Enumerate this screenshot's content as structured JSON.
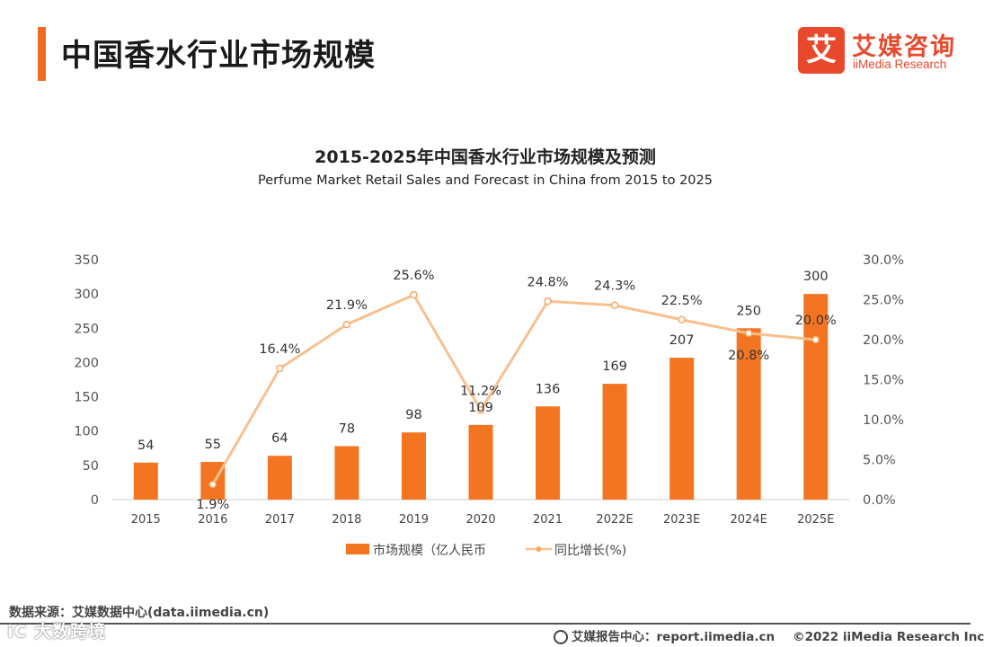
{
  "header": {
    "title": "中国香水行业市场规模"
  },
  "logo": {
    "mark": "艾",
    "cn": "艾媒咨询",
    "en": "iiMedia Research",
    "color": "#e8492d"
  },
  "chart_data": {
    "type": "bar+line",
    "title": "2015-2025年中国香水行业市场规模及预测",
    "subtitle": "Perfume Market Retail Sales and Forecast in China from 2015 to 2025",
    "categories": [
      "2015",
      "2016",
      "2017",
      "2018",
      "2019",
      "2020",
      "2021",
      "2022E",
      "2023E",
      "2024E",
      "2025E"
    ],
    "series": [
      {
        "name": "市场规模（亿人民币",
        "type": "bar",
        "axis": "left",
        "color": "#f47521",
        "values": [
          54,
          55,
          64,
          78,
          98,
          109,
          136,
          169,
          207,
          250,
          300
        ]
      },
      {
        "name": "同比增长(%)",
        "type": "line",
        "axis": "right",
        "color": "#f9c08e",
        "values": [
          null,
          1.9,
          16.4,
          21.9,
          25.6,
          11.2,
          24.8,
          24.3,
          22.5,
          20.8,
          20.0
        ],
        "labels": [
          "",
          "1.9%",
          "16.4%",
          "21.9%",
          "25.6%",
          "11.2%",
          "24.8%",
          "24.3%",
          "22.5%",
          "20.8%",
          "20.0%"
        ]
      }
    ],
    "y_left": {
      "min": 0,
      "max": 350,
      "ticks": [
        0,
        50,
        100,
        150,
        200,
        250,
        300,
        350
      ]
    },
    "y_right": {
      "min": 0,
      "max": 30,
      "ticks": [
        "0.0%",
        "5.0%",
        "10.0%",
        "15.0%",
        "20.0%",
        "25.0%",
        "30.0%"
      ]
    },
    "legend_position": "bottom",
    "grid": false
  },
  "footer": {
    "source": "数据来源：艾媒数据中心(data.iimedia.cn)",
    "report": "艾媒报告中心：report.iimedia.cn",
    "copyright": "©2022  iiMedia Research  Inc",
    "watermark": "iC 大数跨境"
  }
}
